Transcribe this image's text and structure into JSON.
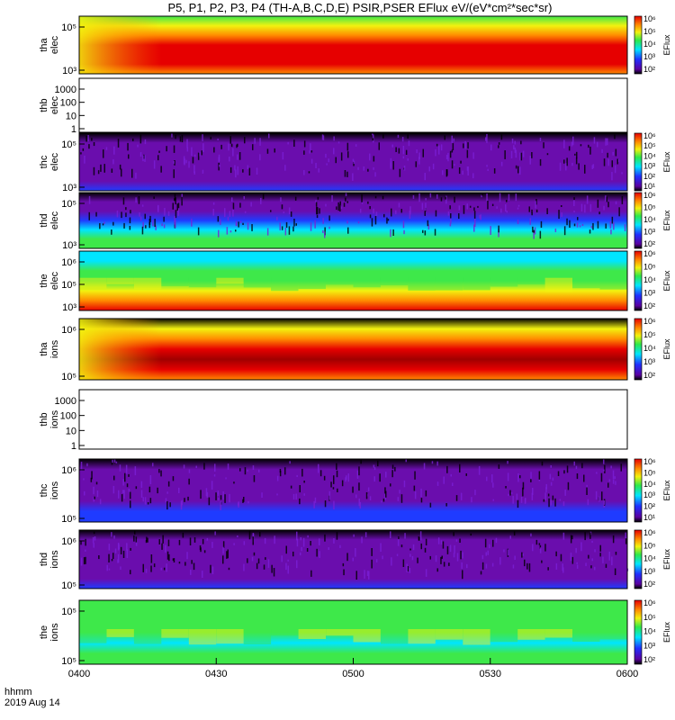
{
  "title": "P5, P1, P2, P3, P4 (TH-A,B,C,D,E) PSIR,PSER EFlux eV/(eV*cm²*sec*sr)",
  "footer": {
    "time_label": "hhmm",
    "date_label": "2019 Aug 14"
  },
  "colors": {
    "dark": "#000000",
    "purple": "#6a0dad",
    "blue": "#1f3bff",
    "cyan": "#00e5ff",
    "green": "#3ee84a",
    "yellow": "#f2f20f",
    "orange": "#ff8a00",
    "red": "#e60000",
    "darkred": "#a00000"
  },
  "chart_data": {
    "type": "heatmap",
    "x_ticks": [
      "0400",
      "0430",
      "0500",
      "0530",
      "0600"
    ],
    "xlim": [
      "0400",
      "0600"
    ],
    "panels": [
      {
        "probe": "tha",
        "species": "elec",
        "ylabel": [
          "tha",
          "elec"
        ],
        "yticks": [
          "10⁵",
          "10³"
        ],
        "colorbar": [
          "10⁶",
          "10⁵",
          "10⁴",
          "10³",
          "10²"
        ],
        "colorbar_label": "EFlux",
        "profile": [
          "green",
          "yellow",
          "orange",
          "red",
          "red",
          "red",
          "orange"
        ],
        "texture": "smooth",
        "empty": false
      },
      {
        "probe": "thb",
        "species": "elec",
        "ylabel": [
          "thb",
          "elec"
        ],
        "yticks": [
          "1000",
          "100",
          "10",
          "1"
        ],
        "colorbar": [],
        "colorbar_label": "",
        "empty": true
      },
      {
        "probe": "thc",
        "species": "elec",
        "ylabel": [
          "thc",
          "elec"
        ],
        "yticks": [
          "10⁵",
          "10³"
        ],
        "colorbar": [
          "10⁶",
          "10⁵",
          "10⁴",
          "10³",
          "10²",
          "10¹"
        ],
        "colorbar_label": "EFlux",
        "profile": [
          "dark",
          "purple",
          "purple",
          "purple",
          "purple",
          "purple",
          "blue"
        ],
        "texture": "noise",
        "empty": false
      },
      {
        "probe": "thd",
        "species": "elec",
        "ylabel": [
          "thd",
          "elec"
        ],
        "yticks": [
          "10⁵",
          "10³"
        ],
        "colorbar": [
          "10⁶",
          "10⁵",
          "10⁴",
          "10³",
          "10²"
        ],
        "colorbar_label": "EFlux",
        "profile": [
          "dark",
          "purple",
          "purple",
          "blue",
          "cyan",
          "green",
          "green"
        ],
        "texture": "noise",
        "empty": false
      },
      {
        "probe": "the",
        "species": "elec",
        "ylabel": [
          "the",
          "elec"
        ],
        "yticks": [
          "10⁶",
          "10⁵",
          "10³"
        ],
        "colorbar": [
          "10⁶",
          "10⁵",
          "10⁴",
          "10³",
          "10²"
        ],
        "colorbar_label": "EFlux",
        "profile": [
          "cyan",
          "cyan",
          "green",
          "green",
          "yellow",
          "orange",
          "red"
        ],
        "texture": "blocks",
        "empty": false
      },
      {
        "probe": "tha",
        "species": "ions",
        "ylabel": [
          "tha",
          "ions"
        ],
        "yticks": [
          "10⁶",
          "10⁵"
        ],
        "colorbar": [
          "10⁶",
          "10⁵",
          "10⁴",
          "10³",
          "10²"
        ],
        "colorbar_label": "EFlux",
        "profile": [
          "dark",
          "yellow",
          "orange",
          "red",
          "darkred",
          "red",
          "orange"
        ],
        "texture": "smooth",
        "empty": false
      },
      {
        "probe": "thb",
        "species": "ions",
        "ylabel": [
          "thb",
          "ions"
        ],
        "yticks": [
          "1000",
          "100",
          "10",
          "1"
        ],
        "colorbar": [],
        "colorbar_label": "",
        "empty": true
      },
      {
        "probe": "thc",
        "species": "ions",
        "ylabel": [
          "thc",
          "ions"
        ],
        "yticks": [
          "10⁶",
          "10⁵"
        ],
        "colorbar": [
          "10⁶",
          "10⁵",
          "10⁴",
          "10³",
          "10²",
          "10¹"
        ],
        "colorbar_label": "EFlux",
        "profile": [
          "dark",
          "purple",
          "purple",
          "purple",
          "purple",
          "blue",
          "blue"
        ],
        "texture": "noise",
        "empty": false
      },
      {
        "probe": "thd",
        "species": "ions",
        "ylabel": [
          "thd",
          "ions"
        ],
        "yticks": [
          "10⁶",
          "10⁵"
        ],
        "colorbar": [
          "10⁶",
          "10⁵",
          "10⁴",
          "10³",
          "10²"
        ],
        "colorbar_label": "EFlux",
        "profile": [
          "dark",
          "purple",
          "purple",
          "purple",
          "purple",
          "purple",
          "blue"
        ],
        "texture": "noise",
        "empty": false
      },
      {
        "probe": "the",
        "species": "ions",
        "ylabel": [
          "the",
          "ions"
        ],
        "yticks": [
          "10⁵",
          "10⁵"
        ],
        "colorbar": [
          "10⁶",
          "10⁵",
          "10⁴",
          "10³",
          "10²"
        ],
        "colorbar_label": "EFlux",
        "profile": [
          "green",
          "green",
          "green",
          "green",
          "cyan",
          "green",
          "green"
        ],
        "texture": "blocks",
        "empty": false
      }
    ]
  }
}
